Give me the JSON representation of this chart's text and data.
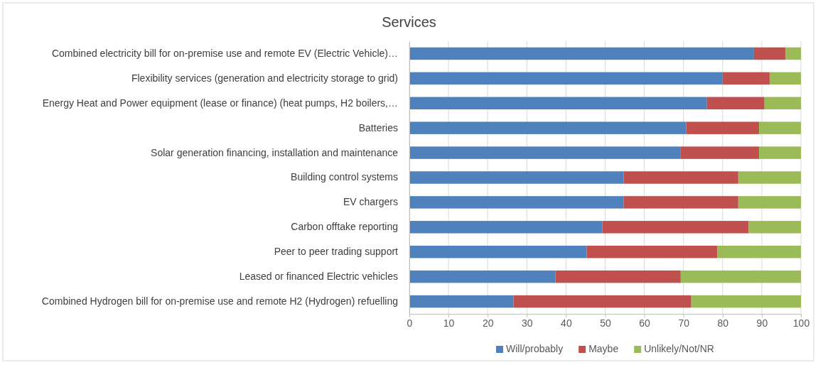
{
  "chart_data": {
    "type": "bar",
    "orientation": "horizontal",
    "stacked": true,
    "title": "Services",
    "categories": [
      "Combined electricity bill for on-premise use and remote EV (Electric Vehicle)…",
      "Flexibility services (generation and electricity storage to grid)",
      "Energy Heat and Power equipment (lease or finance) (heat pumps, H2 boilers,…",
      "Batteries",
      "Solar generation financing, installation and maintenance",
      "Building control systems",
      "EV chargers",
      "Carbon offtake reporting",
      "Peer to peer trading support",
      "Leased or financed Electric vehicles",
      "Combined Hydrogen bill for on-premise use and remote H2 (Hydrogen) refuelling"
    ],
    "series": [
      {
        "name": "Will/probably",
        "color": "#4f81bd",
        "values": [
          88,
          80,
          76,
          70.7,
          69.3,
          54.7,
          54.7,
          49.3,
          45.3,
          37.3,
          26.6
        ]
      },
      {
        "name": "Maybe",
        "color": "#c0504d",
        "values": [
          8,
          12,
          14.7,
          18.6,
          20,
          29.3,
          29.3,
          37.3,
          33.3,
          32,
          45.4
        ]
      },
      {
        "name": "Unlikely/Not/NR",
        "color": "#9bbb59",
        "values": [
          4,
          8,
          9.3,
          10.7,
          10.7,
          16,
          16,
          13.4,
          21.4,
          30.7,
          28
        ]
      }
    ],
    "xlim": [
      0,
      100
    ],
    "xticks": [
      0,
      10,
      20,
      30,
      40,
      50,
      60,
      70,
      80,
      90,
      100
    ],
    "grid": "x",
    "legend": "bottom"
  }
}
